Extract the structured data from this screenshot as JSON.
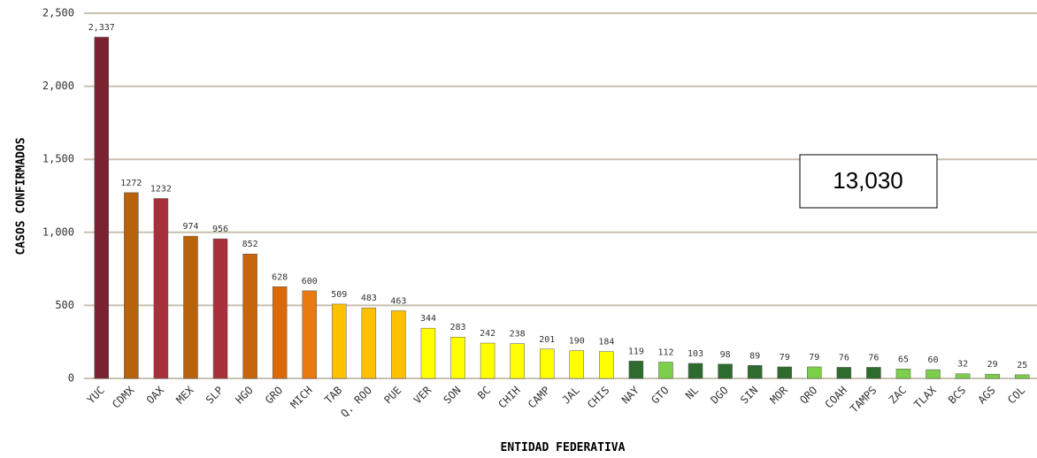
{
  "chart_data": {
    "type": "bar",
    "x_label": "ENTIDAD FEDERATIVA",
    "y_label": "CASOS CONFIRMADOS",
    "annotation": "13,030",
    "categories": [
      "YUC",
      "CDMX",
      "OAX",
      "MEX",
      "SLP",
      "HGO",
      "GRO",
      "MICH",
      "TAB",
      "Q. ROO",
      "PUE",
      "VER",
      "SON",
      "BC",
      "CHIH",
      "CAMP",
      "JAL",
      "CHIS",
      "NAY",
      "GTO",
      "NL",
      "DGO",
      "SIN",
      "MOR",
      "QRO",
      "COAH",
      "TAMPS",
      "ZAC",
      "TLAX",
      "BCS",
      "AGS",
      "COL"
    ],
    "values": [
      2337,
      1272,
      1232,
      974,
      956,
      852,
      628,
      600,
      509,
      483,
      463,
      344,
      283,
      242,
      238,
      201,
      190,
      184,
      119,
      112,
      103,
      98,
      89,
      79,
      79,
      76,
      76,
      65,
      60,
      32,
      29,
      25
    ],
    "value_labels": [
      "2,337",
      "1272",
      "1232",
      "974",
      "956",
      "852",
      "628",
      "600",
      "509",
      "483",
      "463",
      "344",
      "283",
      "242",
      "238",
      "201",
      "190",
      "184",
      "119",
      "112",
      "103",
      "98",
      "89",
      "79",
      "79",
      "76",
      "76",
      "65",
      "60",
      "32",
      "29",
      "25"
    ],
    "colors": [
      "#7b2230",
      "#b8620c",
      "#a8303a",
      "#b8620c",
      "#a8303a",
      "#c8640c",
      "#d86a0a",
      "#e87a10",
      "#ffc000",
      "#ffc000",
      "#ffc000",
      "#ffff00",
      "#ffff00",
      "#ffff00",
      "#ffff00",
      "#ffff00",
      "#ffff00",
      "#ffff00",
      "#2e6b2e",
      "#7ccf4a",
      "#2e6b2e",
      "#2e6b2e",
      "#2e6b2e",
      "#2e6b2e",
      "#7ccf4a",
      "#2e6b2e",
      "#2e6b2e",
      "#7ccf4a",
      "#7ccf4a",
      "#7ccf4a",
      "#7ccf4a",
      "#7ccf4a"
    ],
    "ylim": [
      0,
      2500
    ],
    "yticks": [
      0,
      500,
      {
        "value": 1000,
        "label": "1,000"
      },
      {
        "value": 1500,
        "label": "1,500"
      },
      {
        "value": 2000,
        "label": "2,000"
      },
      {
        "value": 2500,
        "label": "2,500"
      }
    ],
    "grid": true
  }
}
